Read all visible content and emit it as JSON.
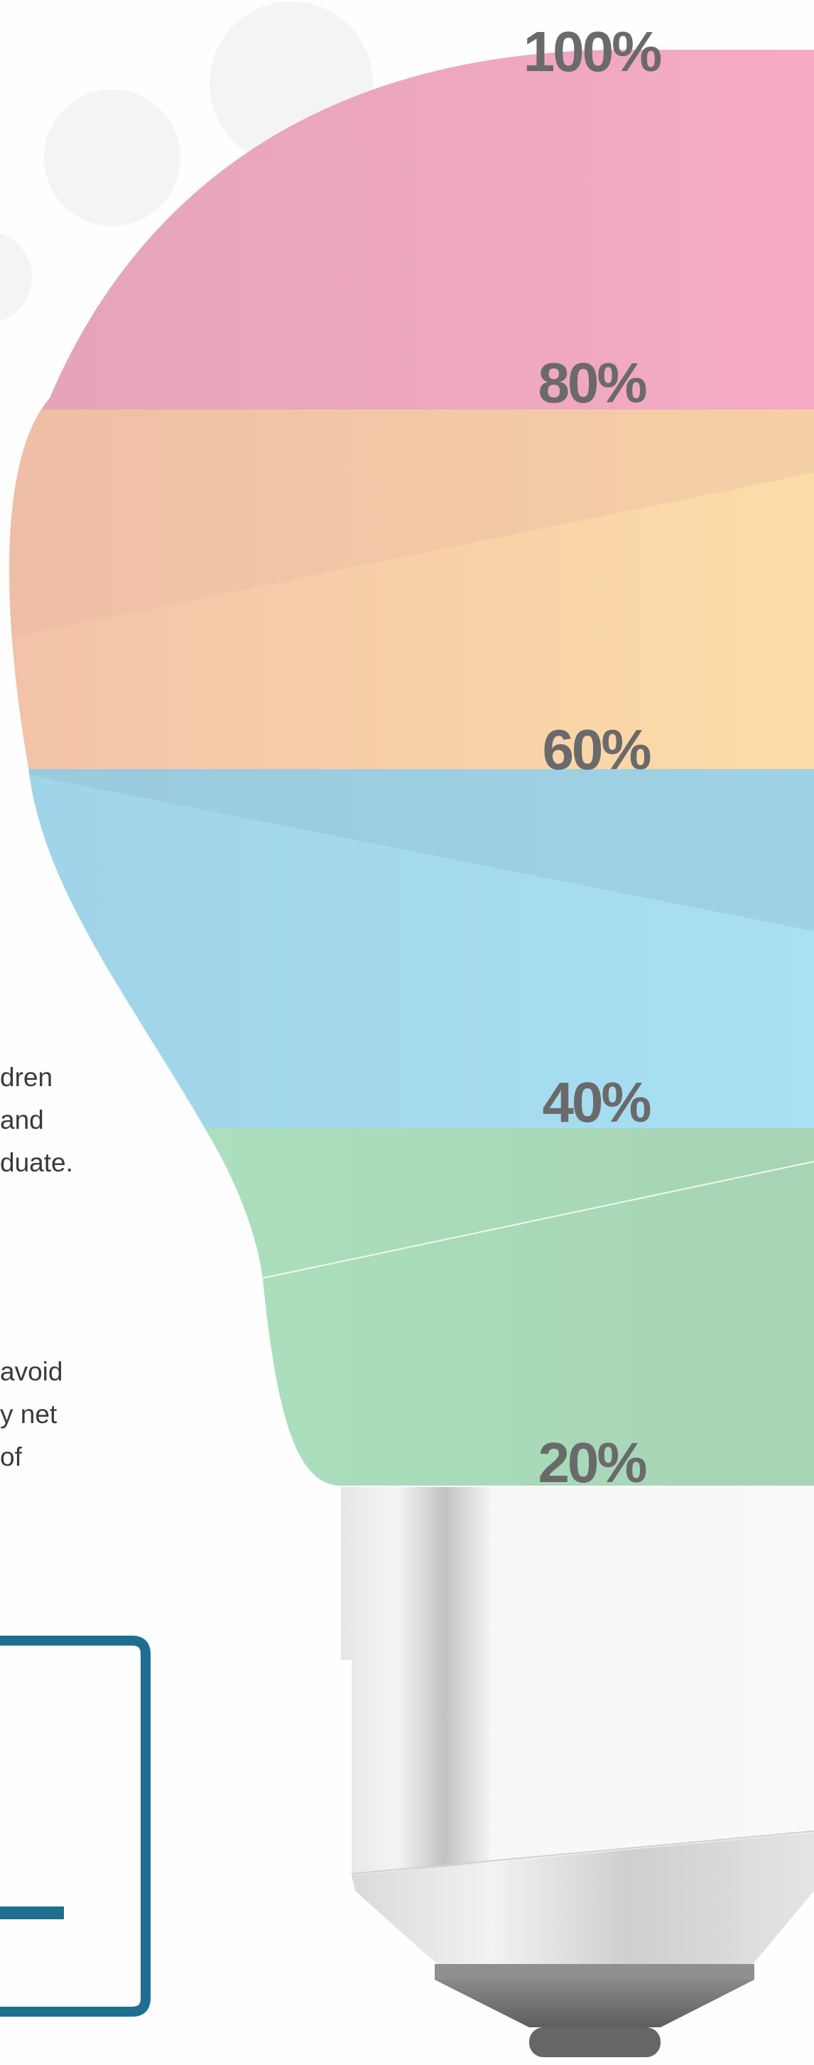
{
  "scale_labels": [
    "100%",
    "80%",
    "60%",
    "40%",
    "20%"
  ],
  "text_fragments": {
    "block_1": [
      "dren",
      "and",
      "duate."
    ],
    "block_2": [
      "avoid",
      "y net of"
    ]
  },
  "colors": {
    "band_100_80": "#eca0bd",
    "band_80_60": "#f9d2a6",
    "band_60_40": "#a3d8ec",
    "band_40_20": "#a9dbba",
    "label_text": "#6a6a6a",
    "frame_accent": "#1e6f8f",
    "bulb_base": "#ededed"
  }
}
